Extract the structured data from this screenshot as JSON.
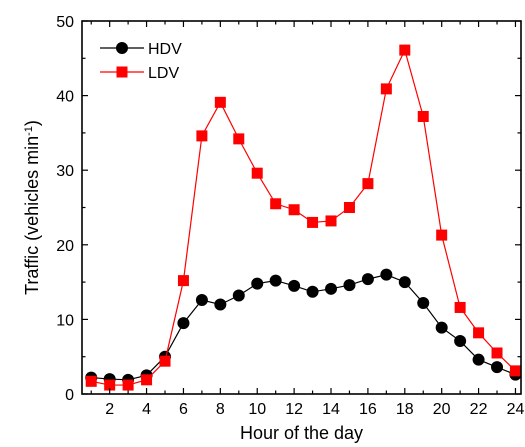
{
  "chart_data": {
    "type": "line",
    "xlabel": "Hour of the day",
    "ylabel": "Traffic (vehicles min",
    "ylabel_sup": "-1",
    "ylabel_close": ")",
    "xlim": [
      0.5,
      24.3
    ],
    "ylim": [
      0,
      50
    ],
    "x_ticks": [
      2,
      4,
      6,
      8,
      10,
      12,
      14,
      16,
      18,
      20,
      22,
      24
    ],
    "y_ticks": [
      0,
      10,
      20,
      30,
      40,
      50
    ],
    "legend_position": "top-left",
    "x": [
      1,
      2,
      3,
      4,
      5,
      6,
      7,
      8,
      9,
      10,
      11,
      12,
      13,
      14,
      15,
      16,
      17,
      18,
      19,
      20,
      21,
      22,
      23,
      24
    ],
    "series": [
      {
        "name": "HDV",
        "color": "#000000",
        "marker": "circle",
        "values": [
          2.2,
          2.0,
          1.9,
          2.5,
          5.0,
          9.5,
          12.6,
          12.0,
          13.2,
          14.8,
          15.2,
          14.5,
          13.7,
          14.1,
          14.6,
          15.4,
          16.0,
          15.0,
          12.2,
          8.9,
          7.1,
          4.6,
          3.6,
          2.6
        ]
      },
      {
        "name": "LDV",
        "color": "#ff0000",
        "marker": "square",
        "values": [
          1.7,
          1.2,
          1.2,
          1.9,
          4.4,
          15.2,
          34.6,
          39.1,
          34.2,
          29.6,
          25.5,
          24.7,
          23.0,
          23.2,
          25.0,
          28.2,
          40.9,
          46.1,
          37.2,
          21.3,
          11.6,
          8.2,
          5.5,
          3.1
        ]
      }
    ]
  }
}
